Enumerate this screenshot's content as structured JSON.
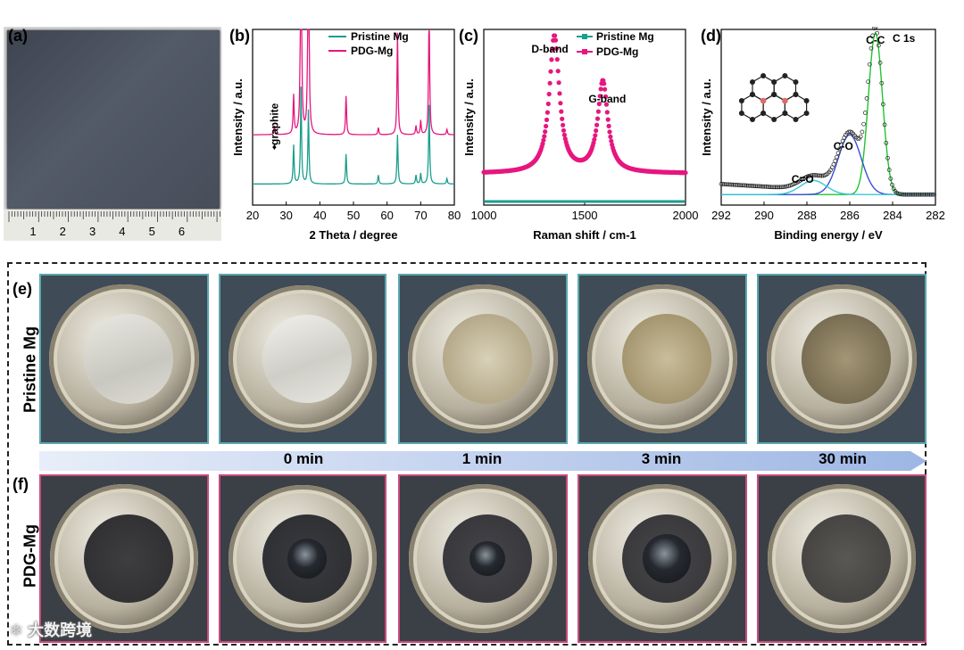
{
  "panels": {
    "a": {
      "label": "(a)",
      "ruler_numbers": [
        "1",
        "2",
        "3",
        "4",
        "5",
        "6"
      ]
    },
    "b": {
      "label": "(b)"
    },
    "c": {
      "label": "(c)"
    },
    "d": {
      "label": "(d)"
    },
    "e": {
      "label": "(e)",
      "row_label": "Pristine Mg"
    },
    "f": {
      "label": "(f)",
      "row_label": "PDG-Mg"
    }
  },
  "timeline": {
    "labels": [
      "0 min",
      "1 min",
      "3 min",
      "30 min"
    ]
  },
  "watermark": "大数跨境",
  "colors": {
    "pristine": "#1b9e8e",
    "pdg": "#e6177e",
    "cc_fit": "#21c431",
    "co_fit": "#3a4fd8",
    "ceo_fit": "#36c7d8"
  },
  "chart_data": [
    {
      "id": "b",
      "type": "line",
      "xlabel": "2 Theta / degree",
      "ylabel": "Intensity / a.u.",
      "xlim": [
        20,
        80
      ],
      "xticks": [
        20,
        30,
        40,
        50,
        60,
        70,
        80
      ],
      "legend": [
        "Pristine Mg",
        "PDG-Mg"
      ],
      "legend_position": "top-right",
      "annotation": "graphite",
      "annotation_x": 26.5,
      "series": [
        {
          "name": "Pristine Mg",
          "offset": 0.12,
          "peaks": [
            [
              32.2,
              0.22
            ],
            [
              34.4,
              0.55
            ],
            [
              36.6,
              0.42
            ],
            [
              47.8,
              0.17
            ],
            [
              57.4,
              0.05
            ],
            [
              63.1,
              0.28
            ],
            [
              68.6,
              0.05
            ],
            [
              70.0,
              0.06
            ],
            [
              72.5,
              0.45
            ],
            [
              77.8,
              0.03
            ]
          ]
        },
        {
          "name": "PDG-Mg",
          "offset": 0.4,
          "peaks": [
            [
              26.5,
              0.05
            ],
            [
              32.2,
              0.22
            ],
            [
              34.4,
              1.6
            ],
            [
              36.6,
              1.6
            ],
            [
              47.8,
              0.22
            ],
            [
              57.4,
              0.04
            ],
            [
              63.1,
              0.58
            ],
            [
              68.6,
              0.05
            ],
            [
              70.0,
              0.08
            ],
            [
              72.5,
              0.75
            ],
            [
              77.8,
              0.03
            ]
          ]
        }
      ]
    },
    {
      "id": "c",
      "type": "line",
      "xlabel": "Raman shift / cm-1",
      "ylabel": "Intensity / a.u.",
      "xlim": [
        1000,
        2000
      ],
      "xticks": [
        1000,
        1500,
        2000
      ],
      "legend": [
        "Pristine Mg",
        "PDG-Mg"
      ],
      "legend_position": "top-right",
      "annotations": [
        {
          "text": "D-band",
          "x": 1350
        },
        {
          "text": "G-band",
          "x": 1590
        }
      ],
      "series": [
        {
          "name": "Pristine Mg",
          "baseline": 0.02
        },
        {
          "name": "PDG-Mg",
          "baseline": 0.18,
          "peaks": [
            [
              1350,
              0.78,
              30
            ],
            [
              1590,
              0.52,
              30
            ]
          ]
        }
      ]
    },
    {
      "id": "d",
      "type": "scatter",
      "xlabel": "Binding energy / eV",
      "ylabel": "Intensity / a.u.",
      "xlim": [
        292,
        282
      ],
      "xticks": [
        292,
        290,
        288,
        286,
        284,
        282
      ],
      "title": "C 1s",
      "components": [
        {
          "name": "C-C",
          "center": 284.8,
          "height": 0.92,
          "width": 0.55
        },
        {
          "name": "C-O",
          "center": 286.0,
          "height": 0.34,
          "width": 0.9
        },
        {
          "name": "C=O",
          "center": 287.7,
          "height": 0.08,
          "width": 1.0
        }
      ],
      "baseline": 0.06
    }
  ]
}
